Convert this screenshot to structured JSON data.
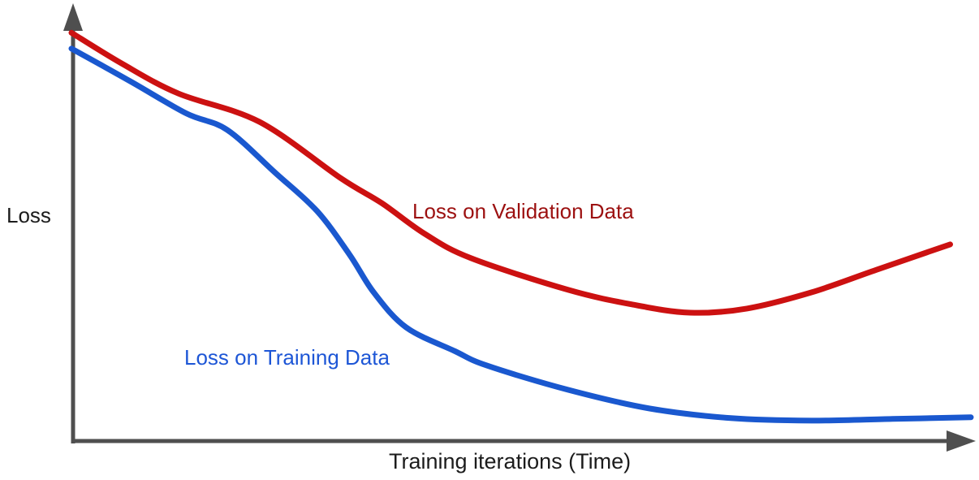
{
  "chart_data": {
    "type": "line",
    "title": "",
    "xlabel": "Training iterations (Time)",
    "ylabel": "Loss",
    "x_range": [
      0,
      100
    ],
    "y_range": [
      0,
      1
    ],
    "grid": false,
    "tick_labels": "none (conceptual sketch, unlabeled axes)",
    "legend_position": "inline annotations next to curves",
    "axis_color": "#4f4f4f",
    "background_color": "#ffffff",
    "series": [
      {
        "name": "Loss on Validation Data",
        "color": "#cc1111",
        "label_color": "#9c1010",
        "x": [
          0,
          5.6,
          11.9,
          20.9,
          30.0,
          34.5,
          39.3,
          44.4,
          55.2,
          62.5,
          68.8,
          75.1,
          82.3,
          89.5,
          97.7
        ],
        "y": [
          0.98,
          0.906,
          0.834,
          0.766,
          0.63,
          0.571,
          0.497,
          0.439,
          0.363,
          0.327,
          0.308,
          0.318,
          0.357,
          0.411,
          0.472
        ]
      },
      {
        "name": "Loss on Training Data",
        "color": "#1a58cf",
        "label_color": "#1d56d6",
        "x": [
          0,
          6.5,
          12.8,
          17.3,
          22.7,
          27.3,
          30.9,
          33.6,
          37.2,
          42.6,
          46.2,
          55.2,
          64.3,
          73.3,
          82.3,
          91.3,
          100
        ],
        "y": [
          0.942,
          0.864,
          0.786,
          0.747,
          0.643,
          0.552,
          0.448,
          0.357,
          0.273,
          0.216,
          0.181,
          0.123,
          0.078,
          0.055,
          0.049,
          0.053,
          0.057
        ]
      }
    ],
    "annotations": [
      {
        "text": "Loss on Validation Data",
        "color": "#9c1010",
        "near": "validation curve midpoint"
      },
      {
        "text": "Loss on Training Data",
        "color": "#1d56d6",
        "near": "training curve steep descent"
      }
    ]
  }
}
